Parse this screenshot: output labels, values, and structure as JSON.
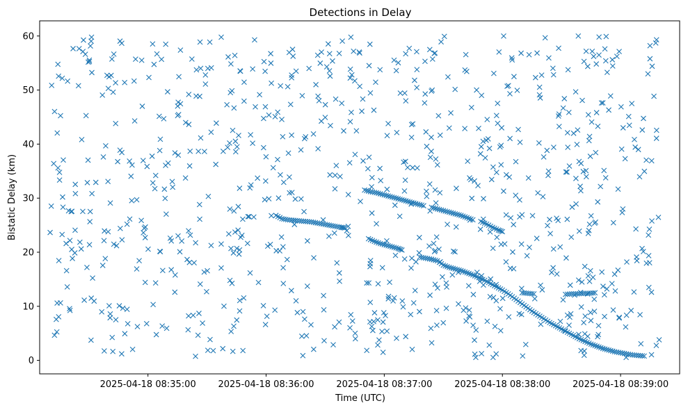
{
  "chart_data": {
    "type": "scatter",
    "title": "Detections in Delay",
    "xlabel": "Time (UTC)",
    "ylabel": "Bistatic Delay (km)",
    "x_ticks": [
      "2025-04-18 08:35:00",
      "2025-04-18 08:36:00",
      "2025-04-18 08:37:00",
      "2025-04-18 08:38:00",
      "2025-04-18 08:39:00"
    ],
    "y_ticks": [
      "0",
      "10",
      "20",
      "30",
      "40",
      "50",
      "60"
    ],
    "xlim": [
      "2025-04-18 08:34:05",
      "2025-04-18 08:39:30"
    ],
    "ylim": [
      -2.5,
      62.8
    ],
    "grid": false,
    "marker": "x",
    "marker_color": "#1f77b4",
    "tracks": [
      {
        "x": [
          "08:36:05",
          "08:36:08",
          "08:36:11",
          "08:36:14",
          "08:36:17",
          "08:36:20",
          "08:36:23",
          "08:36:26",
          "08:36:29",
          "08:36:32",
          "08:36:35",
          "08:36:38",
          "08:36:40"
        ],
        "y": [
          26.8,
          26.2,
          26.0,
          25.9,
          25.8,
          25.7,
          25.6,
          25.4,
          25.2,
          25.0,
          24.8,
          24.6,
          24.5
        ]
      },
      {
        "x": [
          "08:36:50",
          "08:36:53",
          "08:36:56",
          "08:36:59",
          "08:37:02",
          "08:37:05",
          "08:37:08",
          "08:37:11",
          "08:37:14",
          "08:37:17",
          "08:37:20"
        ],
        "y": [
          31.5,
          31.2,
          31.0,
          30.7,
          30.4,
          30.1,
          29.8,
          29.5,
          29.2,
          28.9,
          28.6
        ]
      },
      {
        "x": [
          "08:36:52",
          "08:36:55",
          "08:36:58",
          "08:37:01",
          "08:37:04",
          "08:37:07",
          "08:37:09"
        ],
        "y": [
          22.5,
          22.0,
          21.6,
          21.3,
          21.0,
          20.7,
          20.4
        ]
      },
      {
        "x": [
          "08:37:18",
          "08:37:21",
          "08:37:24",
          "08:37:27",
          "08:37:30",
          "08:37:33",
          "08:37:36",
          "08:37:39",
          "08:37:42",
          "08:37:45",
          "08:37:48",
          "08:37:51",
          "08:37:54",
          "08:37:57",
          "08:38:00",
          "08:38:03",
          "08:38:06",
          "08:38:09",
          "08:38:12",
          "08:38:15",
          "08:38:18",
          "08:38:21",
          "08:38:24",
          "08:38:27",
          "08:38:30",
          "08:38:33",
          "08:38:36",
          "08:38:39",
          "08:38:42",
          "08:38:45",
          "08:38:48",
          "08:38:51",
          "08:38:54",
          "08:38:57",
          "08:39:00",
          "08:39:03",
          "08:39:06",
          "08:39:09",
          "08:39:12"
        ],
        "y": [
          19.1,
          18.9,
          18.7,
          18.4,
          17.6,
          17.2,
          16.9,
          16.6,
          16.2,
          15.8,
          15.3,
          14.8,
          14.2,
          13.6,
          13.0,
          12.3,
          11.5,
          10.7,
          9.9,
          9.1,
          8.4,
          7.7,
          7.0,
          6.4,
          5.8,
          5.2,
          4.6,
          4.0,
          3.5,
          3.0,
          2.6,
          2.2,
          1.9,
          1.6,
          1.4,
          1.2,
          1.0,
          0.9,
          0.8
        ]
      },
      {
        "x": [
          "08:37:24",
          "08:37:27",
          "08:37:30",
          "08:37:33",
          "08:37:36",
          "08:37:39",
          "08:37:42",
          "08:37:45"
        ],
        "y": [
          28.3,
          28.0,
          27.7,
          27.4,
          27.1,
          26.8,
          26.4,
          26.0
        ]
      },
      {
        "x": [
          "08:37:49",
          "08:37:52",
          "08:37:55",
          "08:37:58",
          "08:38:00"
        ],
        "y": [
          25.7,
          25.2,
          24.6,
          24.1,
          23.8
        ]
      },
      {
        "x": [
          "08:38:10",
          "08:38:13",
          "08:38:16"
        ],
        "y": [
          12.5,
          12.4,
          12.3
        ]
      },
      {
        "x": [
          "08:38:32",
          "08:38:35",
          "08:38:38",
          "08:38:41",
          "08:38:44",
          "08:38:47"
        ],
        "y": [
          12.2,
          12.3,
          12.3,
          12.4,
          12.4,
          12.5
        ]
      }
    ],
    "clutter_count": 900,
    "clutter_time_range": [
      "08:34:10",
      "08:39:20"
    ],
    "clutter_delay_range": [
      0.5,
      60
    ]
  }
}
